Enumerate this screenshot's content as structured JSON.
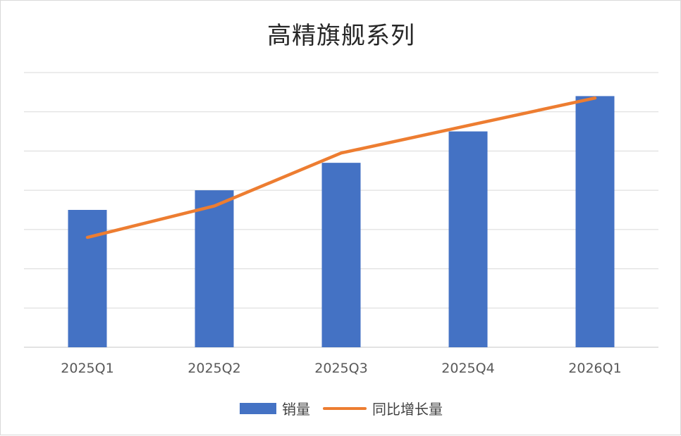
{
  "chart_data": {
    "type": "bar+line",
    "title": "高精旗舰系列",
    "categories": [
      "2025Q1",
      "2025Q2",
      "2025Q3",
      "2025Q4",
      "2026Q1"
    ],
    "series": [
      {
        "name": "销量",
        "type": "bar",
        "values": [
          35,
          40,
          47,
          55,
          64
        ]
      },
      {
        "name": "同比增长量",
        "type": "line",
        "values": [
          28,
          36,
          49.5,
          56.5,
          63.5
        ]
      }
    ],
    "ylim": [
      0,
      70
    ],
    "grid": true,
    "show_y_tick_labels": false,
    "legend_position": "bottom",
    "colors": {
      "bar": "#4472c4",
      "line": "#ed7d31",
      "grid": "#d9d9d9"
    }
  }
}
